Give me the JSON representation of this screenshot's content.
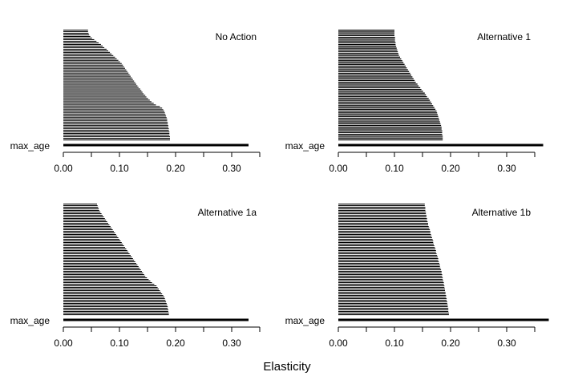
{
  "figure": {
    "xlabel": "Elasticity"
  },
  "chart_data": [
    {
      "type": "bar",
      "title": "No Action",
      "orientation": "horizontal",
      "xlabel": "Elasticity",
      "categories_labeled": [
        "max_age"
      ],
      "xlim": [
        0,
        0.35
      ],
      "xticks": [
        "0.00",
        "0.10",
        "0.20",
        "0.30"
      ],
      "top_bar": {
        "label": "max_age",
        "value": 0.33
      },
      "bar_count": 70,
      "values": [
        0.19,
        0.19,
        0.19,
        0.189,
        0.189,
        0.189,
        0.188,
        0.188,
        0.187,
        0.187,
        0.186,
        0.186,
        0.185,
        0.185,
        0.184,
        0.183,
        0.182,
        0.181,
        0.18,
        0.178,
        0.176,
        0.172,
        0.165,
        0.161,
        0.157,
        0.154,
        0.151,
        0.148,
        0.146,
        0.143,
        0.141,
        0.139,
        0.137,
        0.134,
        0.132,
        0.13,
        0.128,
        0.126,
        0.124,
        0.122,
        0.12,
        0.118,
        0.116,
        0.114,
        0.112,
        0.11,
        0.108,
        0.106,
        0.104,
        0.101,
        0.098,
        0.095,
        0.092,
        0.089,
        0.086,
        0.083,
        0.08,
        0.077,
        0.073,
        0.07,
        0.067,
        0.063,
        0.059,
        0.055,
        0.051,
        0.048,
        0.046,
        0.045,
        0.044,
        0.044
      ],
      "grid": false,
      "legend": "none"
    },
    {
      "type": "bar",
      "title": "Alternative 1",
      "orientation": "horizontal",
      "xlabel": "Elasticity",
      "categories_labeled": [
        "max_age"
      ],
      "xlim": [
        0,
        0.35
      ],
      "xticks": [
        "0.00",
        "0.10",
        "0.20",
        "0.30"
      ],
      "top_bar": {
        "label": "max_age",
        "value": 0.365
      },
      "bar_count": 62,
      "values": [
        0.186,
        0.186,
        0.186,
        0.185,
        0.185,
        0.185,
        0.184,
        0.184,
        0.183,
        0.182,
        0.181,
        0.18,
        0.179,
        0.178,
        0.177,
        0.176,
        0.175,
        0.173,
        0.171,
        0.169,
        0.167,
        0.165,
        0.163,
        0.161,
        0.158,
        0.156,
        0.154,
        0.151,
        0.148,
        0.146,
        0.143,
        0.141,
        0.138,
        0.136,
        0.134,
        0.132,
        0.13,
        0.128,
        0.126,
        0.124,
        0.122,
        0.12,
        0.118,
        0.116,
        0.114,
        0.112,
        0.11,
        0.108,
        0.107,
        0.106,
        0.105,
        0.104,
        0.103,
        0.102,
        0.102,
        0.101,
        0.101,
        0.101,
        0.1,
        0.1,
        0.1,
        0.1
      ],
      "grid": false,
      "legend": "none"
    },
    {
      "type": "bar",
      "title": "Alternative 1a",
      "orientation": "horizontal",
      "xlabel": "Elasticity",
      "categories_labeled": [
        "max_age"
      ],
      "xlim": [
        0,
        0.35
      ],
      "xticks": [
        "0.00",
        "0.10",
        "0.20",
        "0.30"
      ],
      "top_bar": {
        "label": "max_age",
        "value": 0.33
      },
      "bar_count": 70,
      "values": [
        0.188,
        0.188,
        0.187,
        0.187,
        0.186,
        0.186,
        0.185,
        0.184,
        0.183,
        0.182,
        0.181,
        0.18,
        0.178,
        0.176,
        0.174,
        0.172,
        0.17,
        0.168,
        0.166,
        0.162,
        0.158,
        0.155,
        0.152,
        0.149,
        0.146,
        0.144,
        0.142,
        0.14,
        0.138,
        0.136,
        0.134,
        0.132,
        0.13,
        0.128,
        0.126,
        0.124,
        0.122,
        0.12,
        0.118,
        0.116,
        0.114,
        0.112,
        0.11,
        0.108,
        0.106,
        0.104,
        0.102,
        0.1,
        0.098,
        0.096,
        0.094,
        0.092,
        0.09,
        0.088,
        0.086,
        0.084,
        0.082,
        0.08,
        0.078,
        0.076,
        0.074,
        0.072,
        0.07,
        0.068,
        0.066,
        0.064,
        0.063,
        0.062,
        0.061,
        0.06
      ],
      "grid": false,
      "legend": "none"
    },
    {
      "type": "bar",
      "title": "Alternative 1b",
      "orientation": "horizontal",
      "xlabel": "Elasticity",
      "categories_labeled": [
        "max_age"
      ],
      "xlim": [
        0,
        0.35
      ],
      "xticks": [
        "0.00",
        "0.10",
        "0.20",
        "0.30"
      ],
      "top_bar": {
        "label": "max_age",
        "value": 0.375
      },
      "bar_count": 70,
      "values": [
        0.197,
        0.197,
        0.196,
        0.196,
        0.196,
        0.195,
        0.195,
        0.194,
        0.194,
        0.193,
        0.193,
        0.192,
        0.192,
        0.191,
        0.191,
        0.19,
        0.19,
        0.189,
        0.189,
        0.188,
        0.188,
        0.187,
        0.186,
        0.186,
        0.185,
        0.185,
        0.184,
        0.184,
        0.183,
        0.182,
        0.181,
        0.181,
        0.18,
        0.179,
        0.178,
        0.178,
        0.177,
        0.176,
        0.175,
        0.174,
        0.174,
        0.173,
        0.172,
        0.171,
        0.17,
        0.169,
        0.169,
        0.168,
        0.167,
        0.166,
        0.165,
        0.164,
        0.164,
        0.163,
        0.162,
        0.161,
        0.16,
        0.16,
        0.159,
        0.158,
        0.158,
        0.157,
        0.157,
        0.156,
        0.156,
        0.155,
        0.155,
        0.155,
        0.154,
        0.154
      ],
      "grid": false,
      "legend": "none"
    }
  ]
}
